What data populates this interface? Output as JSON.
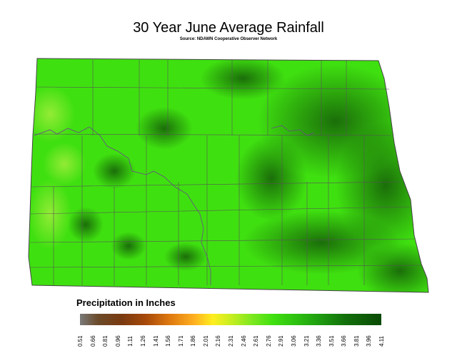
{
  "title": "30 Year June Average Rainfall",
  "subtitle": "Source: NDAWN Cooperative Observer Network",
  "legend": {
    "title": "Precipitation in Inches",
    "ticks": [
      "0.51",
      "0.66",
      "0.81",
      "0.96",
      "1.11",
      "1.26",
      "1.41",
      "1.56",
      "1.71",
      "1.86",
      "2.01",
      "2.16",
      "2.31",
      "2.46",
      "2.61",
      "2.76",
      "2.91",
      "3.06",
      "3.21",
      "3.36",
      "3.51",
      "3.66",
      "3.81",
      "3.96",
      "4.11"
    ],
    "min_color": "#7a7a7a",
    "max_color": "#0a4a06"
  },
  "map": {
    "region": "North Dakota",
    "base_color": "#3fe010",
    "dark_color": "#145a08",
    "light_color": "#7ee830",
    "border_color": "#555555"
  }
}
